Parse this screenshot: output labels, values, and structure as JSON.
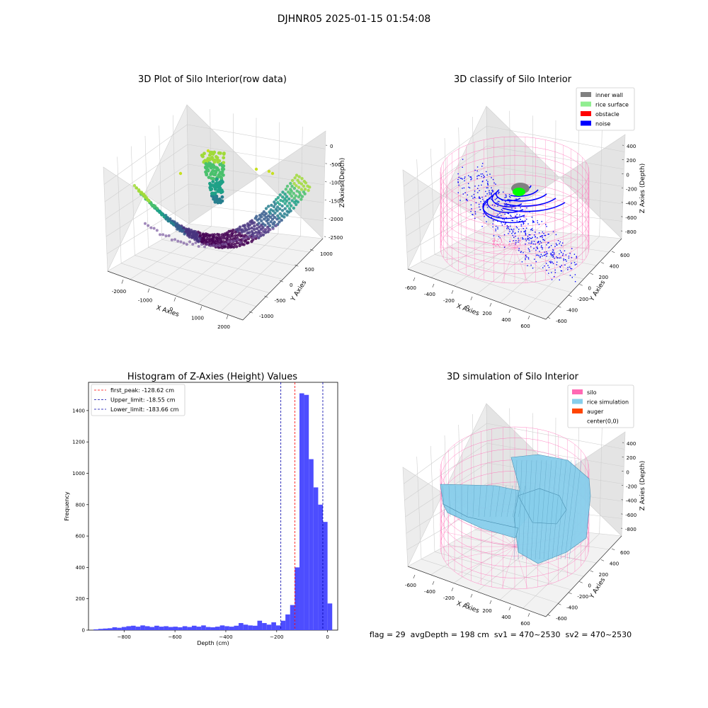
{
  "figure": {
    "title": "DJHNR05 2025-01-15 01:54:08",
    "footer": "flag = 29  avgDepth = 198 cm  sv1 = 470~2530  sv2 = 470~2530"
  },
  "colors": {
    "inner_wall": "#808080",
    "rice_surface": "#90ee90",
    "obstacle": "#ff0000",
    "noise": "#0000ff",
    "silo": "#ff69b4",
    "rice_simulation": "#87ceeb",
    "auger": "#ff4500",
    "histogram_bars": "#4d4dff"
  },
  "chart_data": [
    {
      "type": "scatter",
      "title": "3D Plot of Silo Interior(row data)",
      "xlabel": "X Axies",
      "ylabel": "Y Axies",
      "zlabel": "Z Axies (Depth)",
      "x_ticks": [
        "-2000",
        "-1000",
        "0",
        "1000",
        "2000"
      ],
      "y_ticks": [
        "-1000",
        "-500",
        "0",
        "500",
        "1000"
      ],
      "z_ticks": [
        "0",
        "-500",
        "-1000",
        "-1500",
        "-2000",
        "-2500"
      ],
      "xlim": [
        -2500,
        2500
      ],
      "ylim": [
        -1000,
        1000
      ],
      "zlim": [
        -2700,
        0
      ],
      "colormap": "viridis",
      "grid": true
    },
    {
      "type": "scatter",
      "title": "3D classify of Silo Interior",
      "xlabel": "X Axies",
      "ylabel": "Y Axies",
      "zlabel": "Z Axies (Depth)",
      "x_ticks": [
        "-600",
        "-400",
        "-200",
        "0",
        "200",
        "400",
        "600"
      ],
      "y_ticks": [
        "-600",
        "-400",
        "-200",
        "0",
        "200",
        "400",
        "600"
      ],
      "z_ticks": [
        "400",
        "200",
        "0",
        "-200",
        "-400",
        "-600",
        "-800"
      ],
      "legend": [
        {
          "label": "inner wall",
          "color": "#808080"
        },
        {
          "label": "rice surface",
          "color": "#90ee90"
        },
        {
          "label": "obstacle",
          "color": "#ff0000"
        },
        {
          "label": "noise",
          "color": "#0000ff"
        }
      ],
      "legend_position": "top-right",
      "grid": true
    },
    {
      "type": "bar",
      "title": "Histogram of Z-Axies (Height) Values",
      "xlabel": "Depth (cm)",
      "ylabel": "Frequency",
      "xlim": [
        -940,
        40
      ],
      "ylim": [
        0,
        1580
      ],
      "x_ticks": [
        -800,
        -600,
        -400,
        -200,
        0
      ],
      "y_ticks": [
        0,
        200,
        400,
        600,
        800,
        1000,
        1200,
        1400
      ],
      "bin_width": 18.4,
      "bin_start": -920,
      "values": [
        5,
        8,
        10,
        12,
        18,
        15,
        20,
        25,
        28,
        22,
        30,
        25,
        20,
        28,
        22,
        25,
        20,
        22,
        18,
        25,
        20,
        28,
        22,
        30,
        20,
        18,
        22,
        30,
        25,
        22,
        28,
        45,
        35,
        30,
        28,
        60,
        45,
        35,
        50,
        30,
        60,
        100,
        160,
        400,
        1510,
        1500,
        1090,
        910,
        800,
        690,
        170
      ],
      "vlines": [
        {
          "label": "first_peak: -128.62 cm",
          "value": -128.62,
          "color": "#ff0000"
        },
        {
          "label": "Upper_limit: -18.55 cm",
          "value": -18.55,
          "color": "#0000aa"
        },
        {
          "label": "Lower_limit: -183.66 cm",
          "value": -183.66,
          "color": "#0000aa"
        }
      ],
      "legend_position": "top-left",
      "grid": false
    },
    {
      "type": "area",
      "title": "3D simulation of Silo Interior",
      "xlabel": "X Axies",
      "ylabel": "Y Axies",
      "zlabel": "Z Axies (Depth)",
      "x_ticks": [
        "-600",
        "-400",
        "-200",
        "0",
        "200",
        "400",
        "600"
      ],
      "y_ticks": [
        "-600",
        "-400",
        "-200",
        "0",
        "200",
        "400",
        "600"
      ],
      "z_ticks": [
        "400",
        "200",
        "0",
        "-200",
        "-400",
        "-600",
        "-800"
      ],
      "legend": [
        {
          "label": "silo",
          "color": "#ff69b4"
        },
        {
          "label": "rice simulation",
          "color": "#87ceeb"
        },
        {
          "label": "auger",
          "color": "#ff4500"
        },
        {
          "label": "center(0,0)",
          "color": "#ffffff"
        }
      ],
      "legend_position": "top-right",
      "grid": true
    }
  ]
}
